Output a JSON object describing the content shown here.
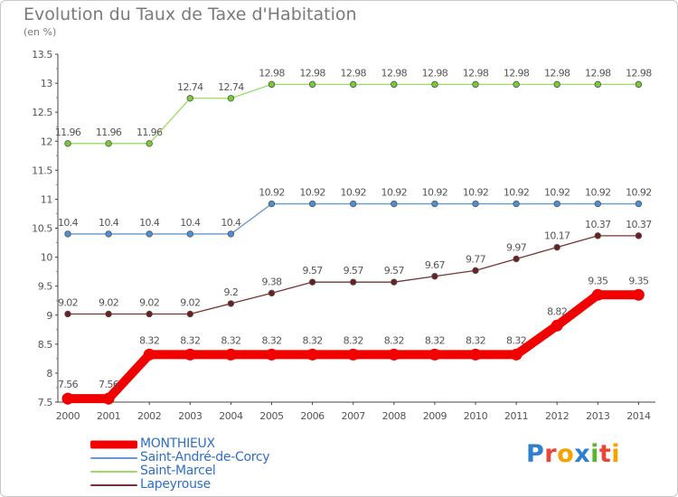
{
  "header": {
    "title": "Evolution du Taux de Taxe d'Habitation",
    "subtitle": "(en %)"
  },
  "brand": {
    "logo_text": "Proxiti",
    "letter_colors": [
      "#2f7fd1",
      "#e8463a",
      "#f4a300",
      "#2f7fd1",
      "#5ab52f",
      "#e8463a",
      "#f4a300"
    ]
  },
  "chart_data": {
    "type": "line",
    "title": "Evolution du Taux de Taxe d'Habitation",
    "subtitle": "(en %)",
    "xlabel": "",
    "ylabel": "",
    "x": [
      2000,
      2001,
      2002,
      2003,
      2004,
      2005,
      2006,
      2007,
      2008,
      2009,
      2010,
      2011,
      2012,
      2013,
      2014
    ],
    "ylim": [
      7.5,
      13.5
    ],
    "yticks": [
      7.5,
      8,
      8.5,
      9,
      9.5,
      10,
      10.5,
      11,
      11.5,
      12,
      12.5,
      13,
      13.5
    ],
    "grid": false,
    "legend_position": "bottom-left",
    "series": [
      {
        "name": "MONTHIEUX",
        "color": "#f20000",
        "emphasis": true,
        "values": [
          7.56,
          7.56,
          8.32,
          8.32,
          8.32,
          8.32,
          8.32,
          8.32,
          8.32,
          8.32,
          8.32,
          8.32,
          8.82,
          9.35,
          9.35
        ]
      },
      {
        "name": "Saint-André-de-Corcy",
        "color": "#6699cc",
        "marker": "#4d8fd6",
        "values": [
          10.4,
          10.4,
          10.4,
          10.4,
          10.4,
          10.92,
          10.92,
          10.92,
          10.92,
          10.92,
          10.92,
          10.92,
          10.92,
          10.92,
          10.92
        ]
      },
      {
        "name": "Saint-Marcel",
        "color": "#99dd66",
        "marker": "#77cc33",
        "values": [
          11.96,
          11.96,
          11.96,
          12.74,
          12.74,
          12.98,
          12.98,
          12.98,
          12.98,
          12.98,
          12.98,
          12.98,
          12.98,
          12.98,
          12.98
        ]
      },
      {
        "name": "Lapeyrouse",
        "color": "#773333",
        "marker": "#6b1f1f",
        "values": [
          9.02,
          9.02,
          9.02,
          9.02,
          9.2,
          9.38,
          9.57,
          9.57,
          9.57,
          9.67,
          9.77,
          9.97,
          10.17,
          10.37,
          10.37
        ]
      }
    ]
  }
}
